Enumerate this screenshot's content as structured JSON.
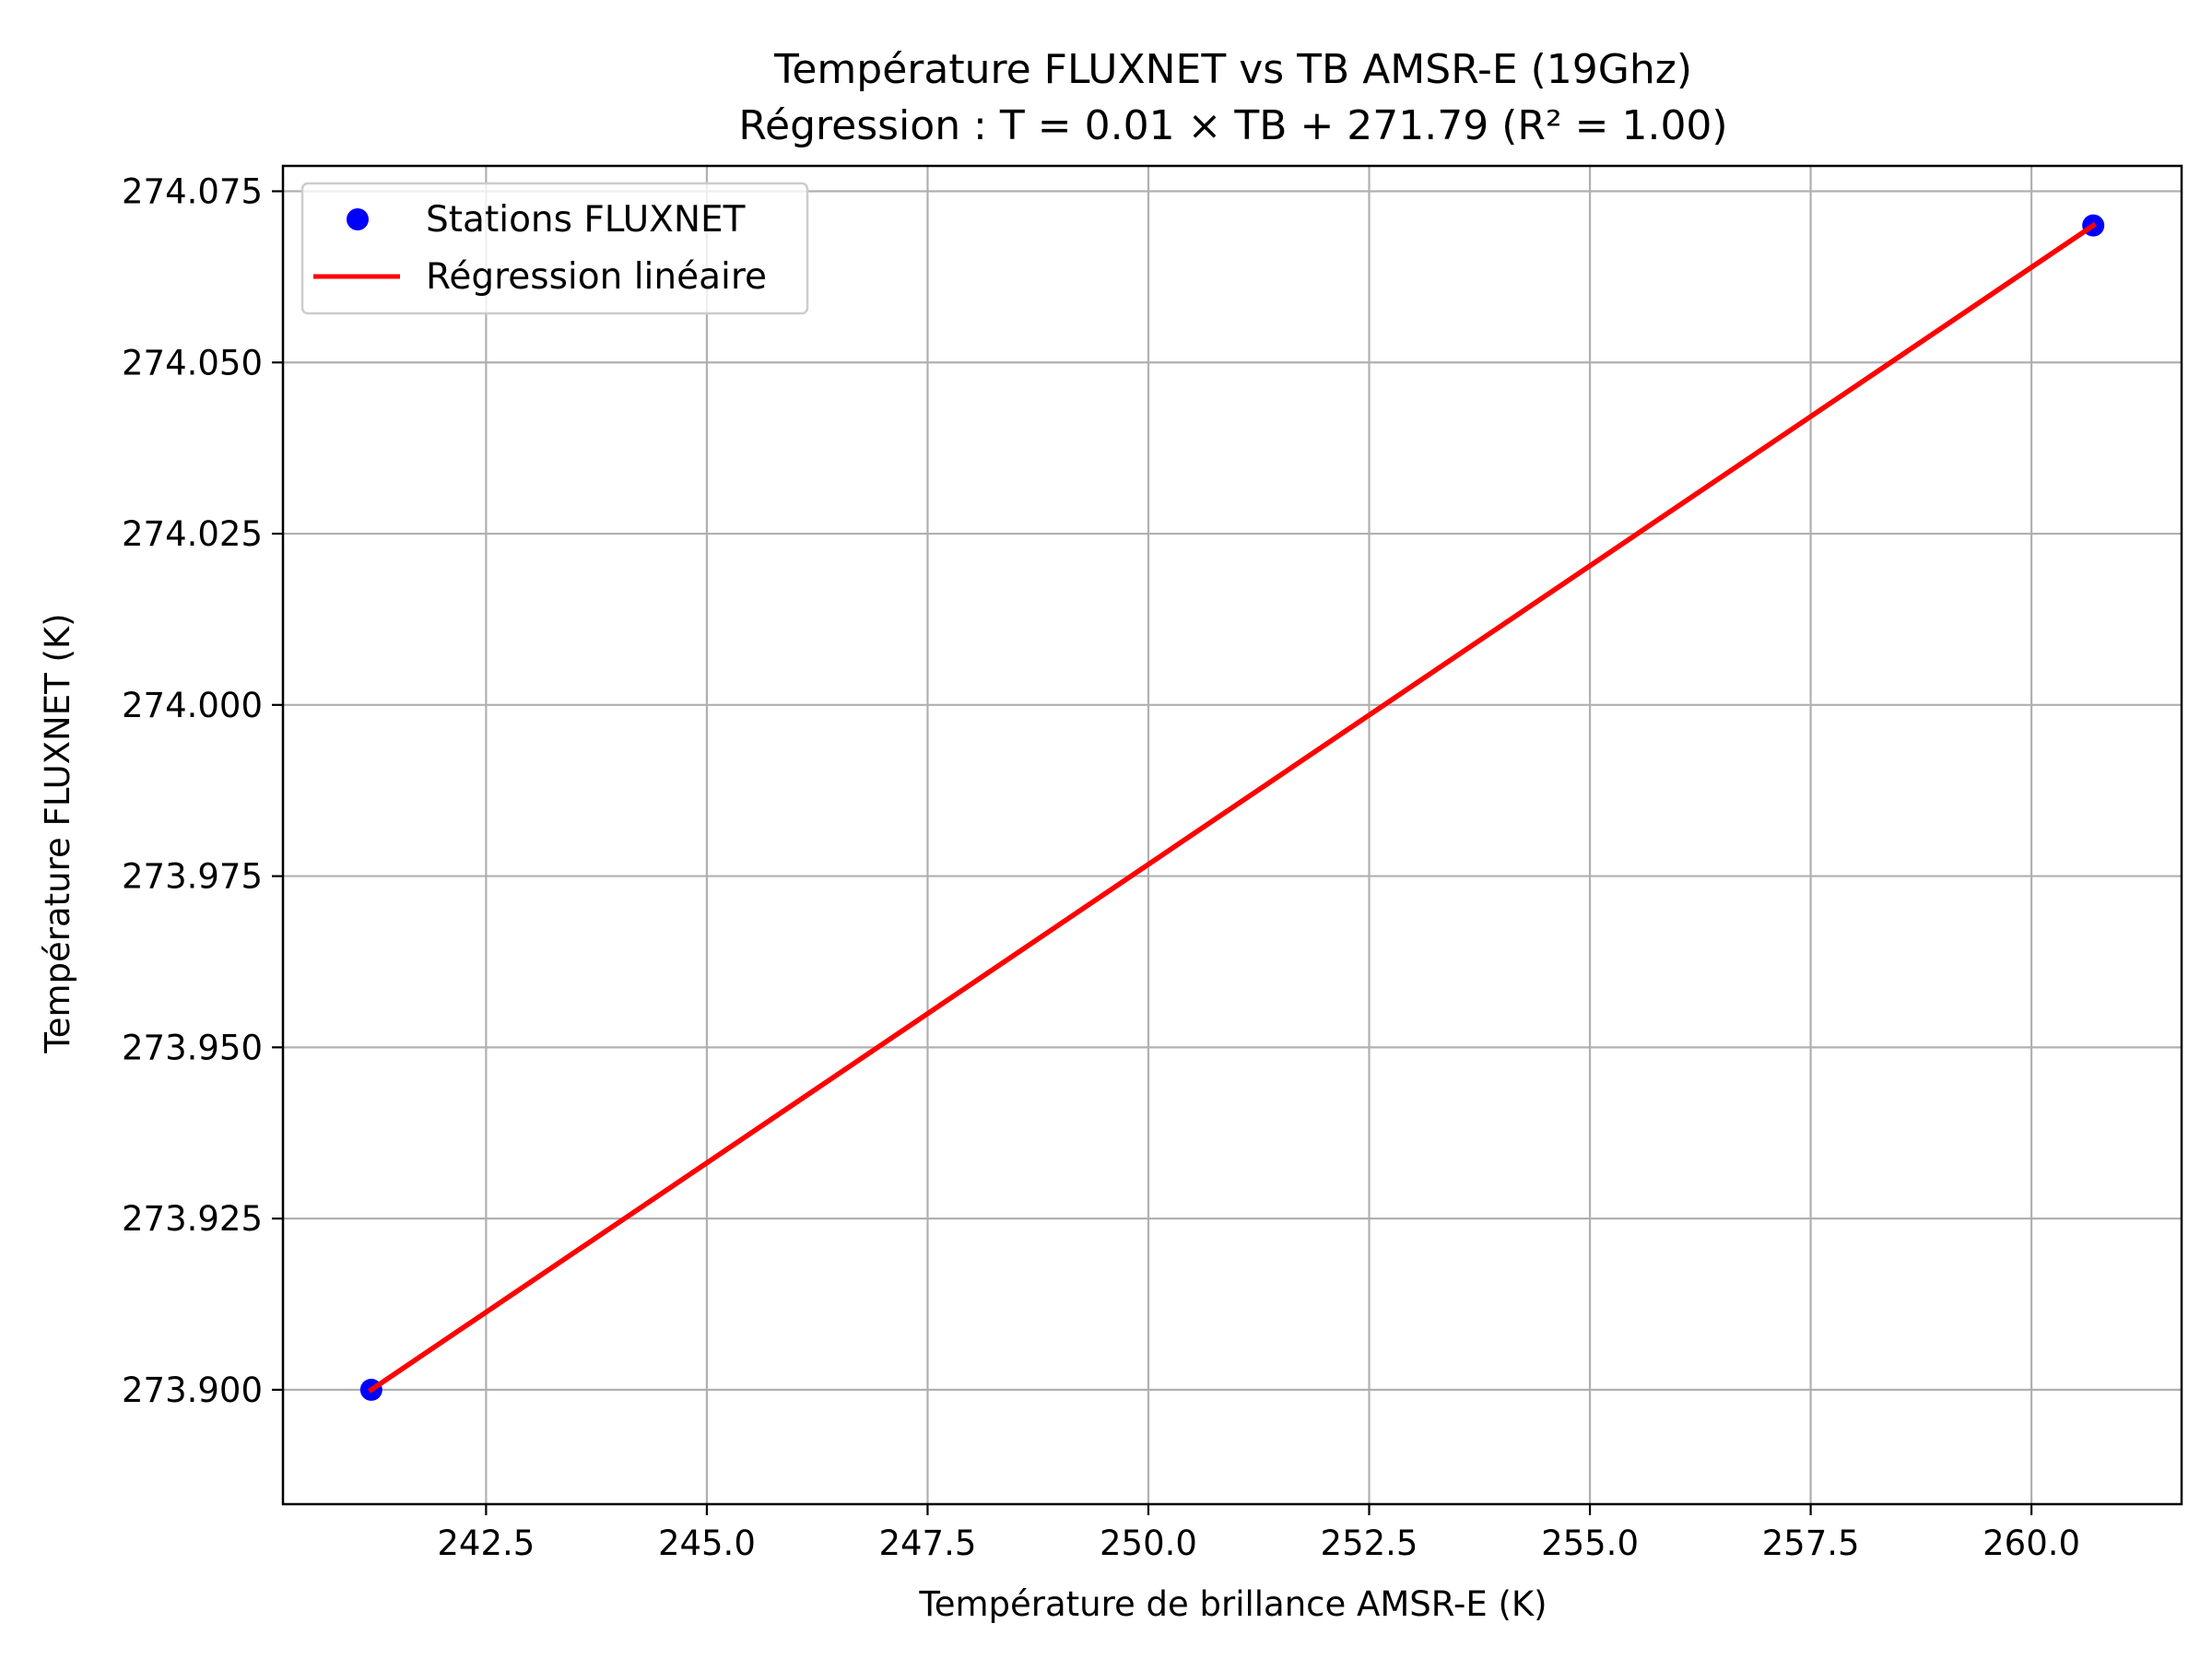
{
  "chart_data": {
    "type": "scatter",
    "title": "Température FLUXNET vs TB AMSR-E (19Ghz)",
    "subtitle": "Régression : T = 0.01 × TB + 271.79 (R² = 1.00)",
    "xlabel": "Température de brillance AMSR-E (K)",
    "ylabel": "Température FLUXNET (K)",
    "xlim": [
      240.2,
      261.7
    ],
    "ylim": [
      273.8833,
      274.0787
    ],
    "x_ticks": [
      242.5,
      245.0,
      247.5,
      250.0,
      252.5,
      255.0,
      257.5,
      260.0
    ],
    "x_tick_labels": [
      "242.5",
      "245.0",
      "247.5",
      "250.0",
      "252.5",
      "255.0",
      "257.5",
      "260.0"
    ],
    "y_ticks": [
      273.9,
      273.925,
      273.95,
      273.975,
      274.0,
      274.025,
      274.05,
      274.075
    ],
    "y_tick_labels": [
      "273.900",
      "273.925",
      "273.950",
      "273.975",
      "274.000",
      "274.025",
      "274.050",
      "274.075"
    ],
    "grid": true,
    "legend_position": "top-left",
    "series": [
      {
        "name": "Stations FLUXNET",
        "kind": "scatter",
        "color": "#0000ff",
        "x": [
          241.2,
          260.7
        ],
        "y": [
          273.9,
          274.07
        ]
      },
      {
        "name": "Régression linéaire",
        "kind": "line",
        "color": "#ff0000",
        "x": [
          241.2,
          260.7
        ],
        "y": [
          273.9,
          274.07
        ]
      }
    ]
  }
}
